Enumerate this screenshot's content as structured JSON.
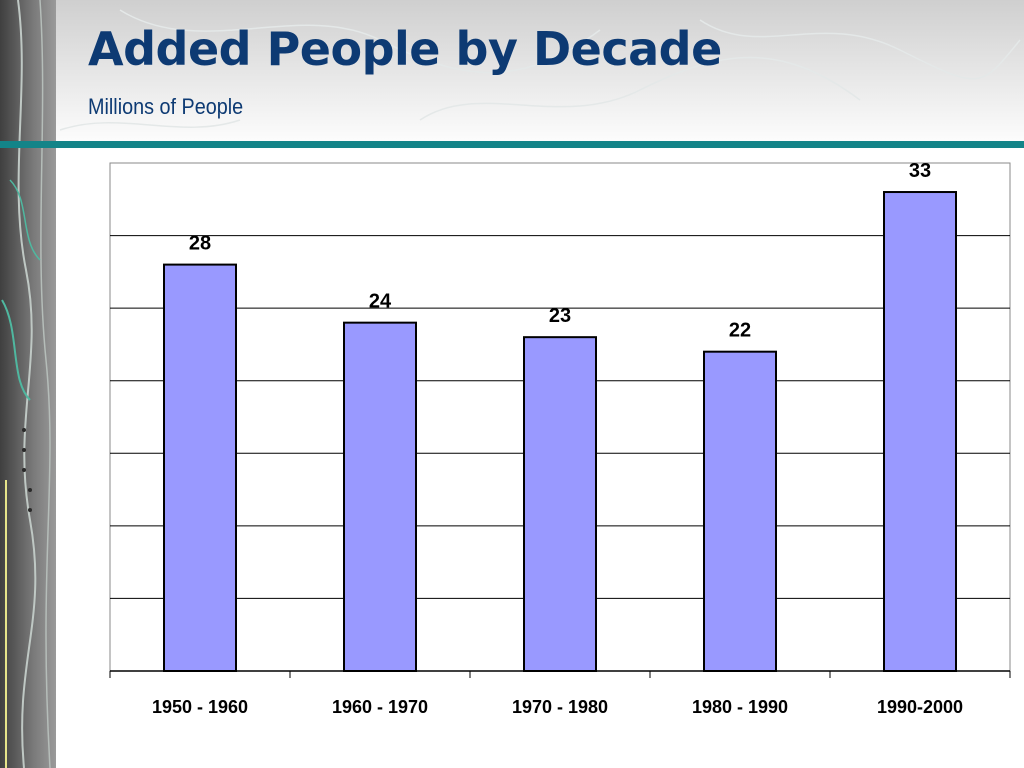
{
  "slide": {
    "title": "Added People by Decade",
    "subtitle": "Millions of People"
  },
  "colors": {
    "title": "#0d3a73",
    "rule": "#138488",
    "bar_fill": "#9999ff",
    "bar_stroke": "#000000",
    "gridline": "#000000",
    "background_band": "#d4d4d4",
    "left_strip": "#5a5a5a"
  },
  "chart_data": {
    "type": "bar",
    "categories": [
      "1950 - 1960",
      "1960 - 1970",
      "1970 - 1980",
      "1980 - 1990",
      "1990-2000"
    ],
    "values": [
      28,
      24,
      23,
      22,
      33
    ],
    "data_labels": [
      "28",
      "24",
      "23",
      "22",
      "33"
    ],
    "title": "",
    "xlabel": "",
    "ylabel": "",
    "ylim": [
      0,
      35
    ],
    "y_gridline_step": 5,
    "grid": true,
    "legend": false
  }
}
